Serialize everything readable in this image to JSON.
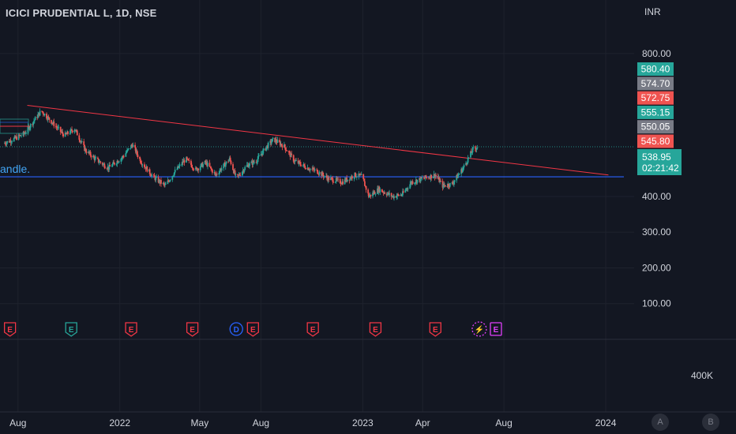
{
  "header": {
    "title": "ICICI PRUDENTIAL L, 1D, NSE",
    "currency": "INR"
  },
  "note_text": "andle.",
  "volume_label": "400K",
  "scale_buttons": {
    "a": "A",
    "b": "B"
  },
  "colors": {
    "background": "#131722",
    "up": "#26a69a",
    "down": "#ef5350",
    "gray_badge": "#787b86",
    "trendline": "#f23645",
    "support": "#2962ff",
    "text": "#d1d4dc"
  },
  "chart_data": {
    "type": "candlestick",
    "title": "ICICI PRUDENTIAL L, 1D, NSE",
    "ylim": [
      0,
      950
    ],
    "y_ticks": [
      100,
      200,
      300,
      400,
      800
    ],
    "y_tick_labels": [
      "100.00",
      "200.00",
      "300.00",
      "400.00",
      "800.00"
    ],
    "x_ticks": [
      "Aug",
      "2022",
      "May",
      "Aug",
      "2023",
      "Apr",
      "Aug",
      "2024"
    ],
    "x_tick_dates": [
      "2021-08-01",
      "2022-01-01",
      "2022-05-01",
      "2022-08-01",
      "2023-01-01",
      "2023-04-01",
      "2023-08-01",
      "2024-01-01"
    ],
    "xlim": [
      "2021-07-05",
      "2024-02-15"
    ],
    "price_path": [
      [
        "2021-07-10",
        548
      ],
      [
        "2021-07-25",
        560
      ],
      [
        "2021-08-10",
        575
      ],
      [
        "2021-08-25",
        612
      ],
      [
        "2021-09-05",
        640
      ],
      [
        "2021-09-20",
        610
      ],
      [
        "2021-10-10",
        570
      ],
      [
        "2021-10-25",
        590
      ],
      [
        "2021-11-10",
        530
      ],
      [
        "2021-11-25",
        505
      ],
      [
        "2021-12-15",
        480
      ],
      [
        "2022-01-05",
        510
      ],
      [
        "2022-01-20",
        545
      ],
      [
        "2022-02-01",
        500
      ],
      [
        "2022-02-20",
        455
      ],
      [
        "2022-03-10",
        430
      ],
      [
        "2022-03-25",
        470
      ],
      [
        "2022-04-10",
        505
      ],
      [
        "2022-04-25",
        475
      ],
      [
        "2022-05-10",
        495
      ],
      [
        "2022-05-25",
        460
      ],
      [
        "2022-06-15",
        505
      ],
      [
        "2022-06-25",
        450
      ],
      [
        "2022-07-10",
        485
      ],
      [
        "2022-07-25",
        500
      ],
      [
        "2022-08-10",
        540
      ],
      [
        "2022-08-20",
        560
      ],
      [
        "2022-09-05",
        540
      ],
      [
        "2022-09-20",
        500
      ],
      [
        "2022-10-10",
        480
      ],
      [
        "2022-10-25",
        470
      ],
      [
        "2022-11-10",
        450
      ],
      [
        "2022-12-01",
        440
      ],
      [
        "2022-12-20",
        460
      ],
      [
        "2022-12-31",
        455
      ],
      [
        "2023-01-10",
        400
      ],
      [
        "2023-01-25",
        420
      ],
      [
        "2023-02-15",
        400
      ],
      [
        "2023-03-01",
        405
      ],
      [
        "2023-03-15",
        440
      ],
      [
        "2023-04-01",
        450
      ],
      [
        "2023-04-20",
        460
      ],
      [
        "2023-05-01",
        430
      ],
      [
        "2023-05-15",
        435
      ],
      [
        "2023-06-01",
        480
      ],
      [
        "2023-06-15",
        530
      ],
      [
        "2023-06-22",
        539
      ]
    ],
    "trendline": {
      "from": [
        "2021-08-15",
        655
      ],
      "to": [
        "2024-01-05",
        460
      ]
    },
    "support_line": 455,
    "last_price_line": 539,
    "price_badges": [
      {
        "label": "580.40",
        "color": "#26a69a"
      },
      {
        "label": "574.70",
        "color": "#787b86"
      },
      {
        "label": "572.75",
        "color": "#ef5350"
      },
      {
        "label": "555.15",
        "color": "#26a69a"
      },
      {
        "label": "550.05",
        "color": "#787b86"
      },
      {
        "label": "545.80",
        "color": "#ef5350"
      }
    ],
    "current_price": {
      "label": "538.95",
      "countdown": "02:21:42",
      "color": "#26a69a"
    },
    "events": [
      {
        "date": "2021-07-20",
        "label": "E",
        "kind": "earnings-past"
      },
      {
        "date": "2021-10-20",
        "label": "E",
        "kind": "earnings-positive"
      },
      {
        "date": "2022-01-18",
        "label": "E",
        "kind": "earnings-past"
      },
      {
        "date": "2022-04-20",
        "label": "E",
        "kind": "earnings-past"
      },
      {
        "date": "2022-06-25",
        "label": "D",
        "kind": "dividend"
      },
      {
        "date": "2022-07-20",
        "label": "E",
        "kind": "earnings-past"
      },
      {
        "date": "2022-10-18",
        "label": "E",
        "kind": "earnings-past"
      },
      {
        "date": "2023-01-20",
        "label": "E",
        "kind": "earnings-past"
      },
      {
        "date": "2023-04-20",
        "label": "E",
        "kind": "earnings-past"
      },
      {
        "date": "2023-06-25",
        "label": "⚡",
        "kind": "split"
      },
      {
        "date": "2023-07-20",
        "label": "E",
        "kind": "earnings-upcoming"
      }
    ]
  }
}
